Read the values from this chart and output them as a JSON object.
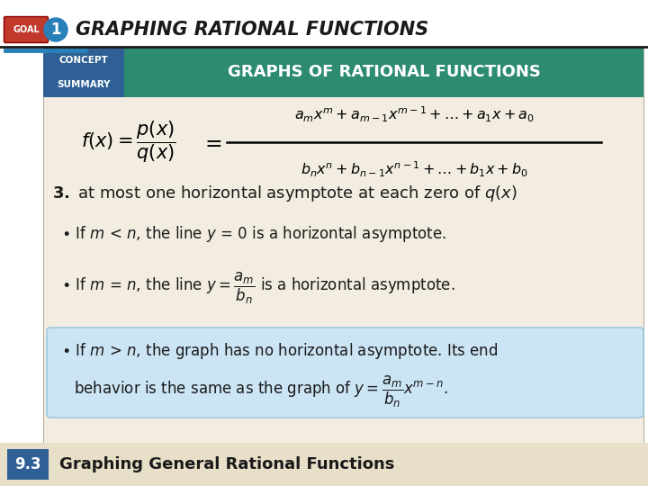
{
  "title": "GRAPHING RATIONAL FUNCTIONS",
  "goal_label": "GOAL",
  "goal_number": "1",
  "concept_label": "CONCEPT",
  "summary_label": "SUMMARY",
  "box_title": "GRAPHS OF RATIONAL FUNCTIONS",
  "section_num": "9.3",
  "section_title": "Graphing General Rational Functions",
  "header_teal": "#2d8b72",
  "concept_blue": "#2e6096",
  "goal_red": "#c0392b",
  "goal_blue_circle": "#2980b9",
  "body_bg": "#f2ede0",
  "footer_bg": "#e8dfc8",
  "footer_blue": "#2e6096",
  "white": "#ffffff",
  "black": "#000000",
  "dark_text": "#1a1a1a",
  "light_blue_box": "#cce5f5",
  "light_blue_border": "#90c4e0"
}
